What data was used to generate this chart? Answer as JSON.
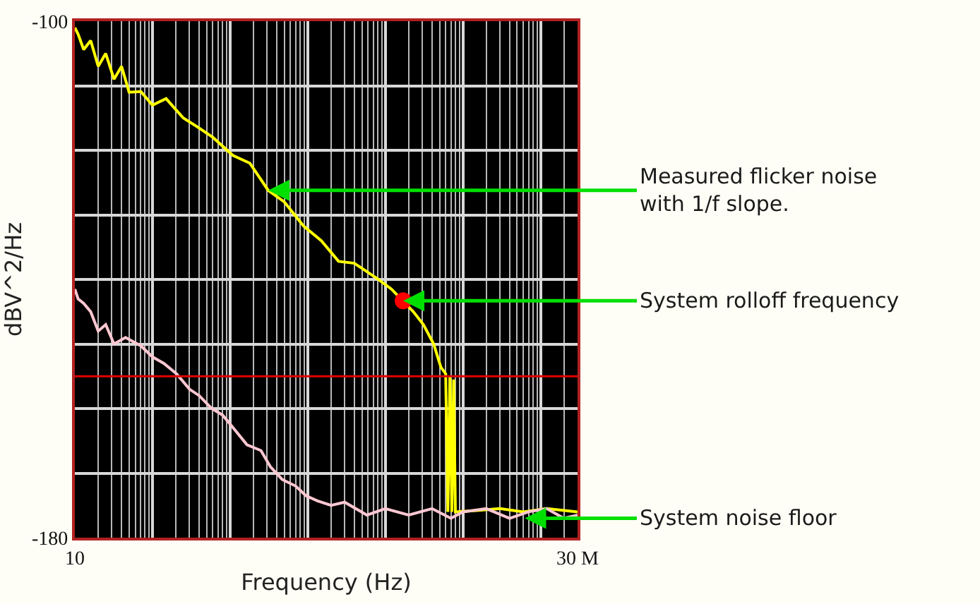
{
  "chart_data": {
    "type": "line",
    "xlabel": "Frequency (Hz)",
    "ylabel": "dBV^2/Hz",
    "log": "x",
    "xlim": [
      10,
      30000000
    ],
    "ylim": [
      -180,
      -100
    ],
    "xticks": [
      {
        "value": 10,
        "label": "10"
      },
      {
        "value": 100,
        "label": null
      },
      {
        "value": 1000,
        "label": null
      },
      {
        "value": 10000,
        "label": null
      },
      {
        "value": 100000,
        "label": null
      },
      {
        "value": 1000000,
        "label": null
      },
      {
        "value": 10000000,
        "label": null
      },
      {
        "value": 30000000,
        "label": "30 M"
      }
    ],
    "yticks": [
      -180,
      {
        "value": -170,
        "label": null
      },
      {
        "value": -160,
        "label": null
      },
      {
        "value": -150,
        "label": null
      },
      {
        "value": -140,
        "label": null
      },
      {
        "value": -130,
        "label": null
      },
      {
        "value": -120,
        "label": null
      },
      {
        "value": -110,
        "label": null
      },
      -100
    ],
    "grid": true,
    "marker": "none",
    "series": [
      {
        "color": "#ffff00",
        "x": [
          10,
          11,
          13,
          16,
          20,
          25,
          32,
          40,
          50,
          71,
          100,
          150,
          250,
          383,
          600,
          1088,
          1800,
          3100,
          5000,
          8800,
          15000,
          25000,
          40000,
          77000,
          120000,
          230000,
          310000,
          420000,
          520000,
          600000,
          640000,
          680000,
          720000,
          760000,
          800000,
          1500000,
          3000000,
          6000000,
          12000000,
          30000000
        ],
        "values": [
          -101,
          -102,
          -104.4,
          -103,
          -107,
          -105,
          -109,
          -107,
          -111,
          -110.9,
          -113,
          -112,
          -115,
          -116.4,
          -118,
          -120.8,
          -122,
          -126.2,
          -128,
          -131.7,
          -134,
          -137.2,
          -137.5,
          -139.8,
          -141.5,
          -145,
          -147,
          -150,
          -153.6,
          -154.6,
          -176,
          -155,
          -176,
          -155.5,
          -176,
          -175.8,
          -175.5,
          -176,
          -175.5,
          -176
        ]
      },
      {
        "color": "#ffc8d2",
        "x": [
          10,
          11,
          13,
          16,
          20,
          25,
          32,
          45,
          71,
          100,
          140,
          204,
          300,
          400,
          580,
          800,
          1100,
          1650,
          2500,
          3300,
          4700,
          7000,
          9500,
          13400,
          20000,
          30000,
          58000,
          100000,
          200000,
          400000,
          700000,
          1000000,
          2000000,
          4000000,
          7000000,
          12000000,
          20000000,
          30000000
        ],
        "values": [
          -141.5,
          -143,
          -143.7,
          -145,
          -148,
          -147,
          -150,
          -149,
          -150.3,
          -152,
          -153,
          -154.6,
          -157,
          -158,
          -160,
          -161,
          -163,
          -165.6,
          -166.5,
          -169,
          -171,
          -172,
          -173.5,
          -174.3,
          -175,
          -174.5,
          -176.5,
          -175.5,
          -176.5,
          -175.5,
          -177,
          -176,
          -175.5,
          -177,
          -176,
          -175.5,
          -177,
          -176.5
        ]
      },
      {
        "type": "scatter",
        "color": "#ff0000",
        "x": [
          170000
        ],
        "values": [
          -143.3
        ],
        "marker": "circle"
      }
    ],
    "ref_lines": [
      {
        "axis": "y",
        "value": -155,
        "color": "#e00000"
      }
    ],
    "annotations": [
      {
        "text": "Measured flicker noise\nwith 1/f slope.",
        "x": 3100,
        "y": -126.2
      },
      {
        "text": "System rolloff frequency",
        "x": 170000,
        "y": -143.3
      },
      {
        "text": "System noise floor",
        "x": 6300000,
        "y": -177
      }
    ]
  }
}
